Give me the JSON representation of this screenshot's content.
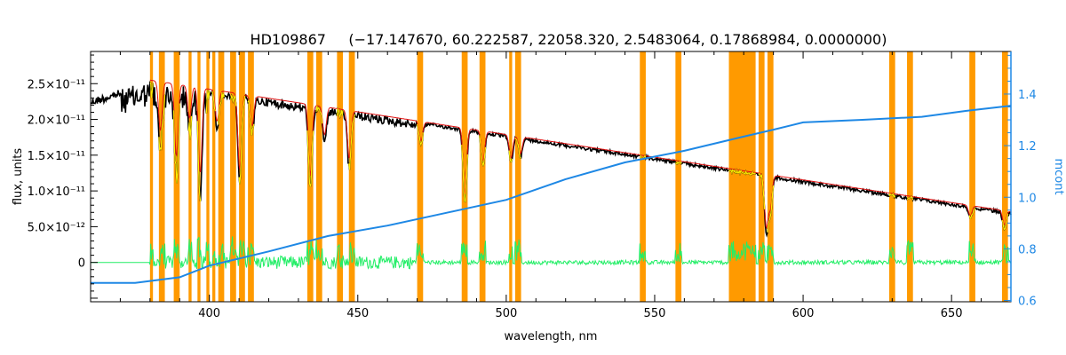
{
  "chart_data": {
    "type": "line",
    "title": "HD109867     (−17.147670, 60.222587, 22058.320, 2.5483064, 0.17868984, 0.0000000)",
    "xlabel": "wavelength, nm",
    "ylabel": "flux, units",
    "y2label": "mcont",
    "xlim": [
      360,
      670
    ],
    "ylim": [
      -5.5e-12,
      2.95e-11
    ],
    "y2lim": [
      0.595,
      1.565
    ],
    "x_ticks": [
      400,
      450,
      500,
      550,
      600,
      650
    ],
    "y_ticks": [
      {
        "value": 0,
        "label": "0"
      },
      {
        "value": 5e-12,
        "label": "5.0×10⁻¹²"
      },
      {
        "value": 1e-11,
        "label": "1.0×10⁻¹¹"
      },
      {
        "value": 1.5e-11,
        "label": "1.5×10⁻¹¹"
      },
      {
        "value": 2e-11,
        "label": "2.0×10⁻¹¹"
      },
      {
        "value": 2.5e-11,
        "label": "2.5×10⁻¹¹"
      }
    ],
    "y2_ticks": [
      0.6,
      0.8,
      1.0,
      1.2,
      1.4
    ],
    "masked_regions": [
      [
        380,
        381
      ],
      [
        383,
        385
      ],
      [
        388,
        390
      ],
      [
        393,
        394
      ],
      [
        396,
        397
      ],
      [
        399,
        400
      ],
      [
        401,
        402
      ],
      [
        403,
        405
      ],
      [
        407,
        409
      ],
      [
        410,
        412
      ],
      [
        413,
        415
      ],
      [
        433,
        435
      ],
      [
        436,
        438
      ],
      [
        443,
        445
      ],
      [
        447,
        449
      ],
      [
        470,
        472
      ],
      [
        485,
        487
      ],
      [
        491,
        493
      ],
      [
        501,
        502
      ],
      [
        503,
        505
      ],
      [
        545,
        547
      ],
      [
        557,
        559
      ],
      [
        575,
        584
      ],
      [
        585,
        587
      ],
      [
        588,
        590
      ],
      [
        629,
        631
      ],
      [
        635,
        637
      ],
      [
        656,
        658
      ],
      [
        667,
        669
      ]
    ],
    "continuum": {
      "color": "#1e88e5",
      "points": [
        [
          360,
          0.668
        ],
        [
          375,
          0.668
        ],
        [
          390,
          0.69
        ],
        [
          400,
          0.735
        ],
        [
          420,
          0.79
        ],
        [
          440,
          0.85
        ],
        [
          460,
          0.89
        ],
        [
          480,
          0.94
        ],
        [
          500,
          0.99
        ],
        [
          520,
          1.07
        ],
        [
          540,
          1.135
        ],
        [
          560,
          1.18
        ],
        [
          580,
          1.235
        ],
        [
          590,
          1.262
        ],
        [
          600,
          1.29
        ],
        [
          620,
          1.3
        ],
        [
          640,
          1.312
        ],
        [
          655,
          1.335
        ],
        [
          670,
          1.355
        ]
      ]
    },
    "series": [
      {
        "color": "#000000",
        "role": "observed"
      },
      {
        "color": "#e01010",
        "role": "model"
      },
      {
        "color": "#ffeb00",
        "role": "masked"
      },
      {
        "color": "#22ee66",
        "role": "residual"
      }
    ],
    "absorption_lines": [
      {
        "x": 383.5,
        "depth": 0.3
      },
      {
        "x": 388.9,
        "depth": 0.45
      },
      {
        "x": 393.3,
        "depth": 0.2
      },
      {
        "x": 396.8,
        "depth": 0.25
      },
      {
        "x": 397.0,
        "depth": 0.3
      },
      {
        "x": 402.6,
        "depth": 0.2
      },
      {
        "x": 410.2,
        "depth": 0.5
      },
      {
        "x": 414.4,
        "depth": 0.2
      },
      {
        "x": 434.0,
        "depth": 0.5
      },
      {
        "x": 438.8,
        "depth": 0.2
      },
      {
        "x": 447.1,
        "depth": 0.35
      },
      {
        "x": 471.3,
        "depth": 0.15
      },
      {
        "x": 486.1,
        "depth": 0.55
      },
      {
        "x": 492.2,
        "depth": 0.25
      },
      {
        "x": 501.6,
        "depth": 0.2
      },
      {
        "x": 504.8,
        "depth": 0.15
      },
      {
        "x": 587.6,
        "depth": 0.65
      },
      {
        "x": 589.0,
        "depth": 0.4
      },
      {
        "x": 656.3,
        "depth": 0.2
      },
      {
        "x": 667.8,
        "depth": 0.3
      }
    ]
  }
}
